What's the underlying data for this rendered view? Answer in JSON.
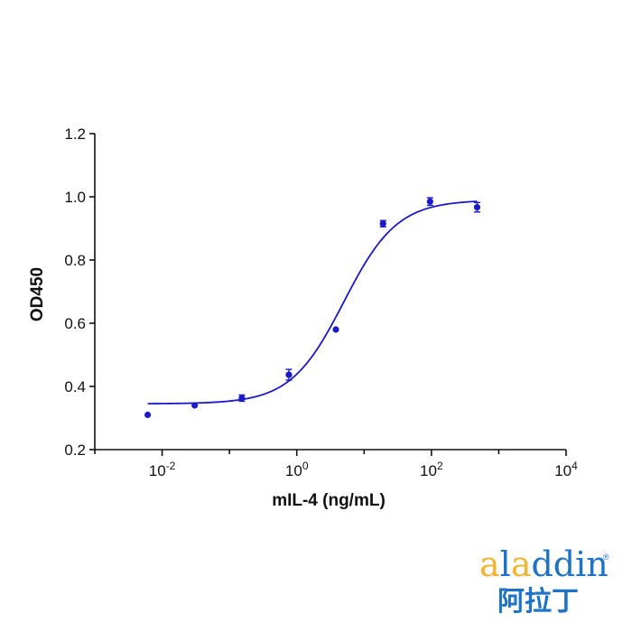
{
  "chart_data": {
    "type": "scatter",
    "title": "",
    "xlabel": "mIL-4 (ng/mL)",
    "ylabel": "OD450",
    "x_scale": "log",
    "xlim": [
      0.001,
      10000
    ],
    "ylim": [
      0.2,
      1.2
    ],
    "grid": false,
    "legend": "none",
    "x_ticks": [
      {
        "value": 0.01,
        "base": "10",
        "exp": "-2"
      },
      {
        "value": 1,
        "base": "10",
        "exp": "0"
      },
      {
        "value": 100,
        "base": "10",
        "exp": "2"
      },
      {
        "value": 10000,
        "base": "10",
        "exp": "4"
      }
    ],
    "y_ticks": [
      {
        "value": 0.2,
        "label": "0.2"
      },
      {
        "value": 0.4,
        "label": "0.4"
      },
      {
        "value": 0.6,
        "label": "0.6"
      },
      {
        "value": 0.8,
        "label": "0.8"
      },
      {
        "value": 1.0,
        "label": "1.0"
      },
      {
        "value": 1.2,
        "label": "1.2"
      }
    ],
    "series": [
      {
        "points": [
          {
            "x": 0.0061,
            "y": 0.31,
            "err": 0.0
          },
          {
            "x": 0.0305,
            "y": 0.34,
            "err": 0.0
          },
          {
            "x": 0.153,
            "y": 0.363,
            "err": 0.01
          },
          {
            "x": 0.763,
            "y": 0.437,
            "err": 0.017
          },
          {
            "x": 3.81,
            "y": 0.58,
            "err": 0.0
          },
          {
            "x": 19.1,
            "y": 0.915,
            "err": 0.01
          },
          {
            "x": 95.4,
            "y": 0.985,
            "err": 0.012
          },
          {
            "x": 477,
            "y": 0.967,
            "err": 0.015
          }
        ],
        "fit": {
          "model": "4PL",
          "bottom": 0.345,
          "top": 0.99,
          "ec50": 5.0,
          "hill": 1.1
        }
      }
    ],
    "colors": {
      "series": "#1a1ac8",
      "axis": "#111111"
    }
  },
  "logo": {
    "brand": "aladdin",
    "registered": "®",
    "cjk": "阿拉丁",
    "colors": {
      "primary": "#1e73c8",
      "accent": "#f2b431"
    }
  }
}
